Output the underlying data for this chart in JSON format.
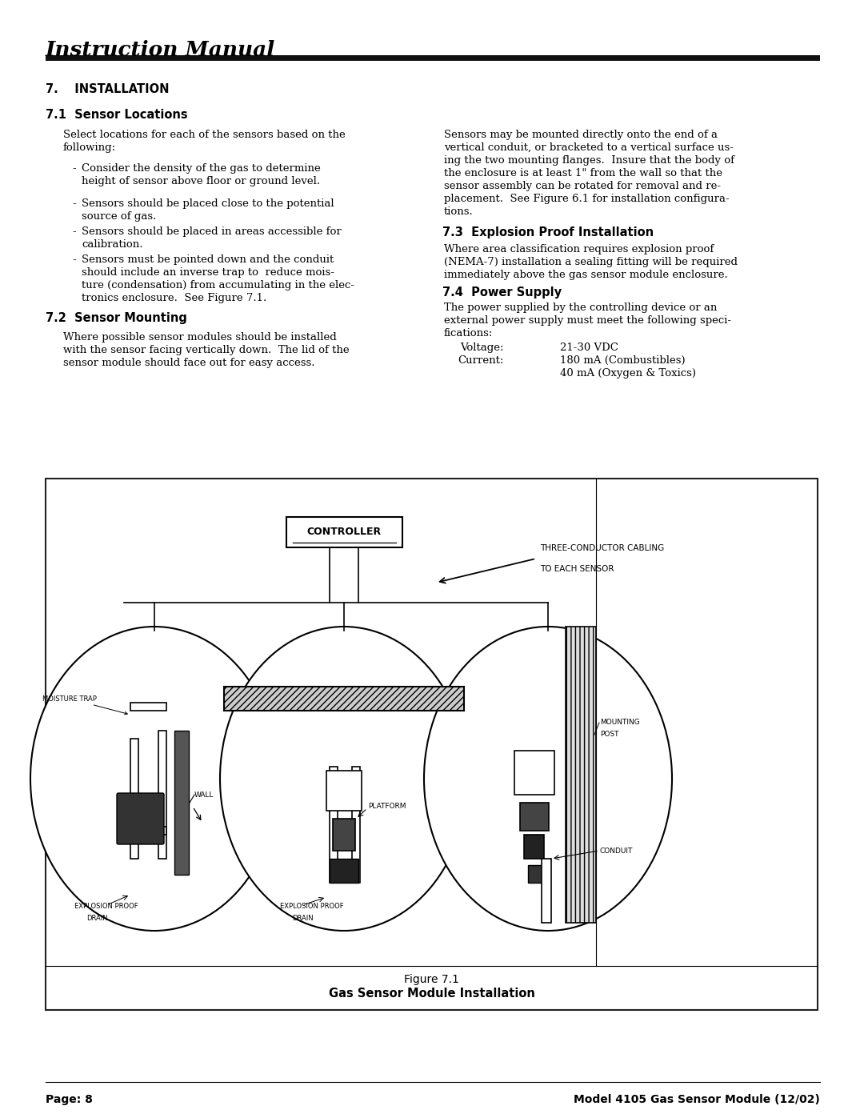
{
  "page_bg": "#ffffff",
  "header_title": "Instruction Manual",
  "section7_title": "7.    INSTALLATION",
  "section71_title": "7.1  Sensor Locations",
  "section72_title": "7.2  Sensor Mounting",
  "section73_title": "7.3  Explosion Proof Installation",
  "section74_title": "7.4  Power Supply",
  "body_71_1": "Select locations for each of the sensors based on the",
  "body_71_2": "following:",
  "bullet1a": "Consider the density of the gas to determine",
  "bullet1b": "height of sensor above floor or ground level.",
  "bullet2a": "Sensors should be placed close to the potential",
  "bullet2b": "source of gas.",
  "bullet3a": "Sensors should be placed in areas accessible for",
  "bullet3b": "calibration.",
  "bullet4a": "Sensors must be pointed down and the conduit",
  "bullet4b": "should include an inverse trap to  reduce mois-",
  "bullet4c": "ture (condensation) from accumulating in the elec-",
  "bullet4d": "tronics enclosure.  See Figure 7.1.",
  "body_72_1": "Where possible sensor modules should be installed",
  "body_72_2": "with the sensor facing vertically down.  The lid of the",
  "body_72_3": "sensor module should face out for easy access.",
  "right_71_1": "Sensors may be mounted directly onto the end of a",
  "right_71_2": "vertical conduit, or bracketed to a vertical surface us-",
  "right_71_3": "ing the two mounting flanges.  Insure that the body of",
  "right_71_4": "the enclosure is at least 1\" from the wall so that the",
  "right_71_5": "sensor assembly can be rotated for removal and re-",
  "right_71_6": "placement.  See Figure 6.1 for installation configura-",
  "right_71_7": "tions.",
  "body_73_1": "Where area classification requires explosion proof",
  "body_73_2": "(NEMA-7) installation a sealing fitting will be required",
  "body_73_3": "immediately above the gas sensor module enclosure.",
  "body_74_1": "The power supplied by the controlling device or an",
  "body_74_2": "external power supply must meet the following speci-",
  "body_74_3": "fications:",
  "voltage_label": "Voltage:",
  "voltage_value": "21-30 VDC",
  "current_label": "Current:",
  "current_value1": "180 mA (Combustibles)",
  "current_value2": "40 mA (Oxygen & Toxics)",
  "fig_caption1": "Figure 7.1",
  "fig_caption2": "Gas Sensor Module Installation",
  "footer_left": "Page: 8",
  "footer_right": "Model 4105 Gas Sensor Module (12/02)",
  "ctrl_label": "CONTROLLER",
  "arrow_label1": "THREE-CONDUCTOR CABLING",
  "arrow_label2": "TO EACH SENSOR",
  "label_moisture": "MOISTURE TRAP",
  "label_wall": "WALL",
  "label_epd1": "EXPLOSION PROOF",
  "label_drain": "DRAIN",
  "label_platform": "PLATFORM",
  "label_epd2": "EXPLOSION PROOF",
  "label_drain2": "DRAIN",
  "label_mounting": "MOUNTING",
  "label_post": "POST",
  "label_conduit": "CONDUIT"
}
